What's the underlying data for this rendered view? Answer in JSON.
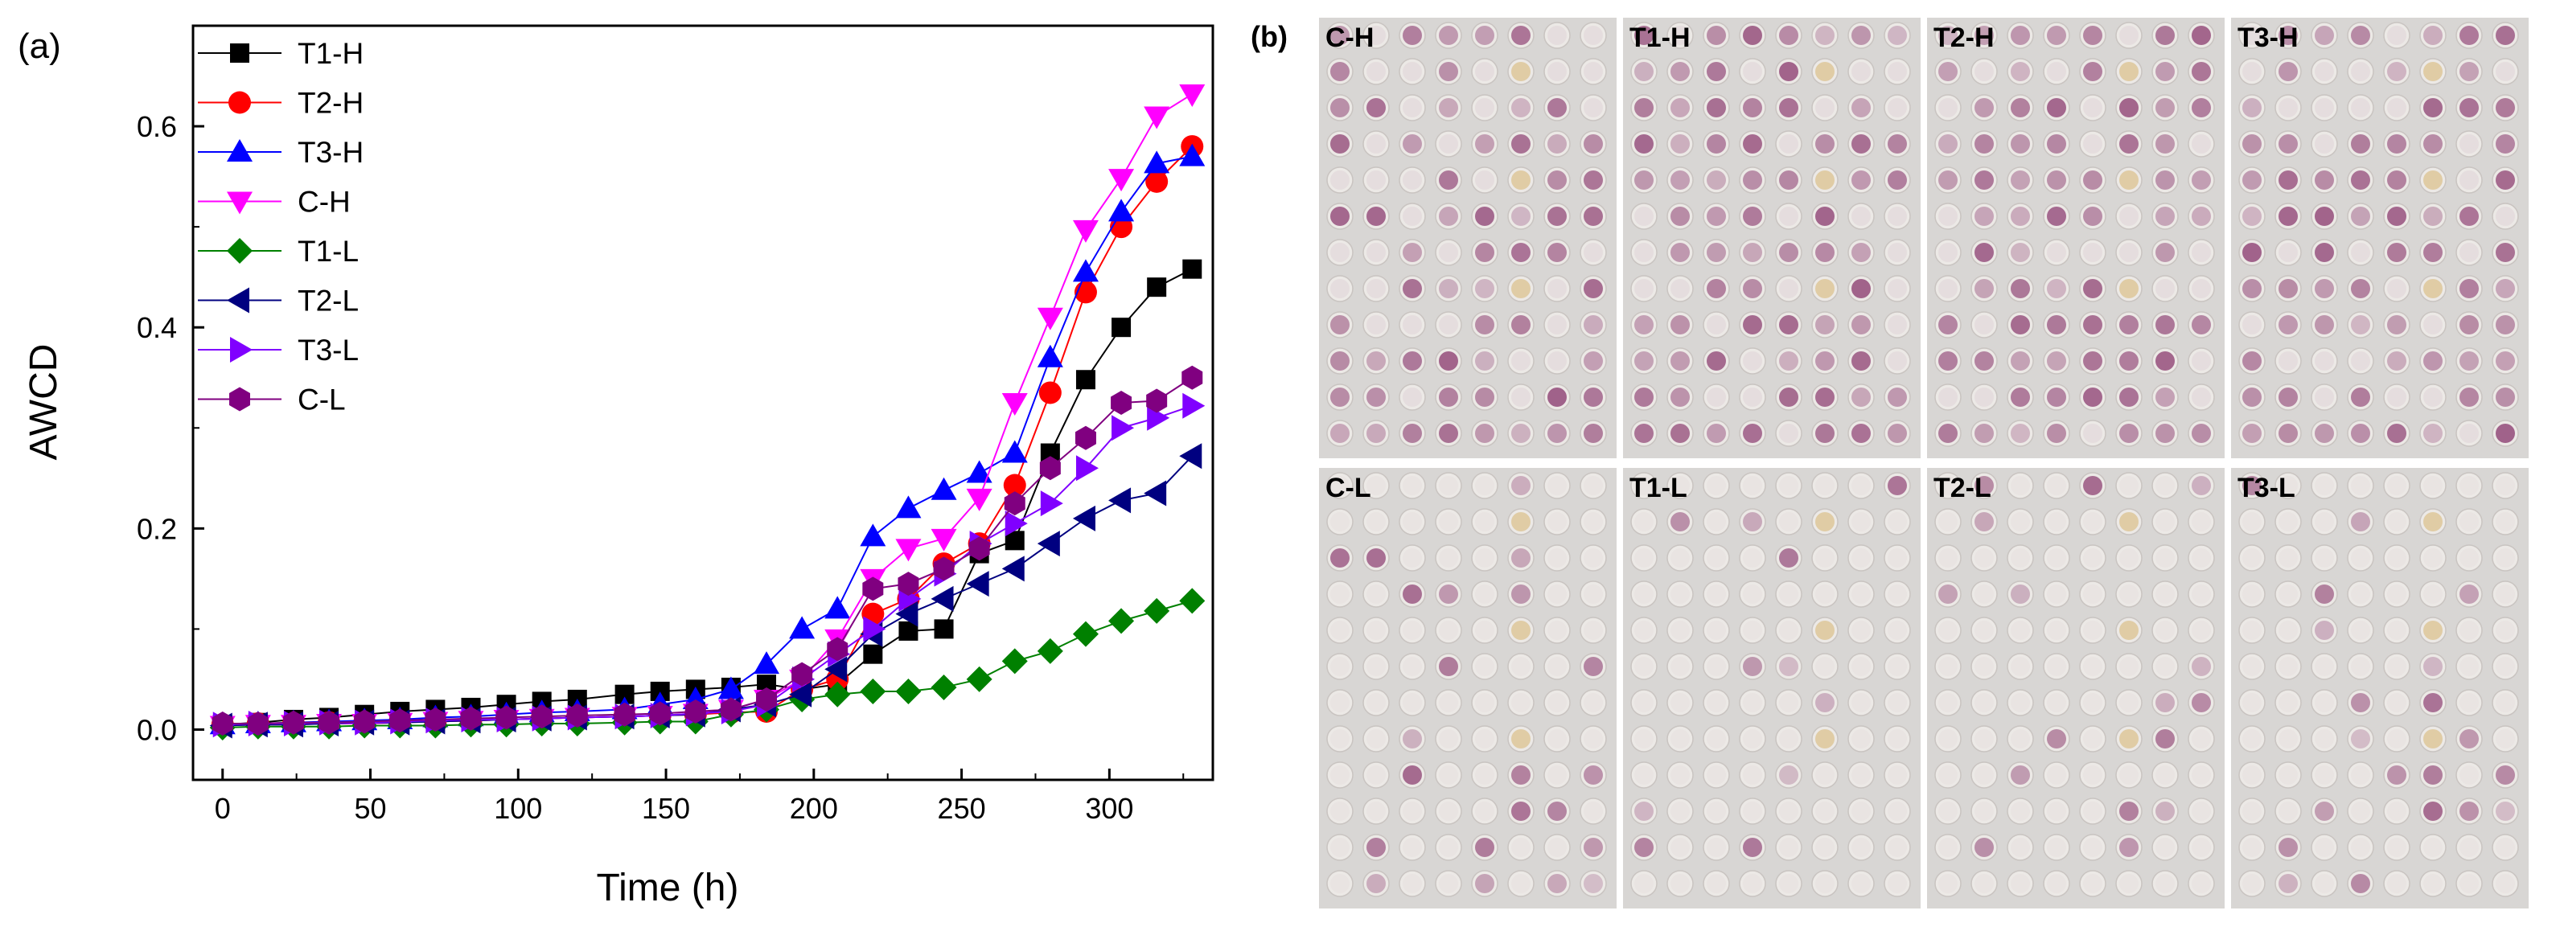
{
  "panel_a_label": "(a)",
  "panel_b_label": "(b)",
  "chart_data": {
    "type": "line",
    "title": "",
    "xlabel": "Time (h)",
    "ylabel": "AWCD",
    "xlim": [
      -10,
      335
    ],
    "ylim": [
      -0.05,
      0.7
    ],
    "xticks": [
      0,
      50,
      100,
      150,
      200,
      250,
      300
    ],
    "yticks": [
      0.0,
      0.2,
      0.4,
      0.6
    ],
    "xtick_labels": [
      "0",
      "50",
      "100",
      "150",
      "200",
      "250",
      "300"
    ],
    "ytick_labels": [
      "0.0",
      "0.2",
      "0.4",
      "0.6"
    ],
    "grid": false,
    "legend_position": "top-left",
    "x": [
      0,
      12,
      24,
      36,
      48,
      60,
      72,
      84,
      96,
      108,
      120,
      136,
      148,
      160,
      172,
      184,
      196,
      208,
      220,
      232,
      244,
      256,
      268,
      280,
      292,
      304,
      316,
      328
    ],
    "series": [
      {
        "name": "T1-H",
        "color": "#000000",
        "marker": "square",
        "values": [
          0.005,
          0.007,
          0.01,
          0.012,
          0.015,
          0.018,
          0.02,
          0.022,
          0.025,
          0.028,
          0.03,
          0.035,
          0.038,
          0.04,
          0.042,
          0.045,
          0.04,
          0.045,
          0.075,
          0.098,
          0.1,
          0.175,
          0.188,
          0.275,
          0.348,
          0.4,
          0.44,
          0.458
        ]
      },
      {
        "name": "T2-H",
        "color": "#ff0000",
        "marker": "circle",
        "values": [
          0.005,
          0.006,
          0.006,
          0.007,
          0.007,
          0.008,
          0.008,
          0.009,
          0.01,
          0.011,
          0.012,
          0.013,
          0.014,
          0.015,
          0.017,
          0.018,
          0.04,
          0.05,
          0.115,
          0.13,
          0.165,
          0.185,
          0.243,
          0.335,
          0.435,
          0.5,
          0.545,
          0.58
        ]
      },
      {
        "name": "T3-H",
        "color": "#0000ff",
        "marker": "triangle-up",
        "values": [
          0.005,
          0.006,
          0.007,
          0.008,
          0.009,
          0.01,
          0.012,
          0.013,
          0.015,
          0.017,
          0.018,
          0.02,
          0.025,
          0.03,
          0.04,
          0.065,
          0.1,
          0.12,
          0.192,
          0.22,
          0.238,
          0.255,
          0.275,
          0.37,
          0.455,
          0.515,
          0.563,
          0.57
        ]
      },
      {
        "name": "C-H",
        "color": "#ff00ff",
        "marker": "triangle-down",
        "values": [
          0.004,
          0.005,
          0.005,
          0.006,
          0.006,
          0.007,
          0.008,
          0.009,
          0.01,
          0.011,
          0.012,
          0.013,
          0.014,
          0.016,
          0.02,
          0.03,
          0.05,
          0.09,
          0.15,
          0.18,
          0.19,
          0.23,
          0.325,
          0.41,
          0.497,
          0.548,
          0.61,
          0.632
        ]
      },
      {
        "name": "T1-L",
        "color": "#008000",
        "marker": "diamond",
        "values": [
          0.002,
          0.003,
          0.003,
          0.003,
          0.004,
          0.004,
          0.004,
          0.005,
          0.005,
          0.006,
          0.006,
          0.007,
          0.008,
          0.008,
          0.015,
          0.02,
          0.03,
          0.035,
          0.038,
          0.038,
          0.042,
          0.05,
          0.068,
          0.078,
          0.095,
          0.108,
          0.118,
          0.128
        ]
      },
      {
        "name": "T2-L",
        "color": "#000080",
        "marker": "triangle-left",
        "values": [
          0.004,
          0.005,
          0.005,
          0.006,
          0.007,
          0.007,
          0.008,
          0.009,
          0.01,
          0.011,
          0.012,
          0.013,
          0.014,
          0.015,
          0.02,
          0.025,
          0.035,
          0.06,
          0.095,
          0.115,
          0.13,
          0.145,
          0.16,
          0.185,
          0.21,
          0.228,
          0.235,
          0.272
        ]
      },
      {
        "name": "T3-L",
        "color": "#8000ff",
        "marker": "triangle-right",
        "values": [
          0.005,
          0.006,
          0.006,
          0.007,
          0.007,
          0.008,
          0.009,
          0.01,
          0.01,
          0.011,
          0.012,
          0.013,
          0.014,
          0.016,
          0.018,
          0.025,
          0.05,
          0.075,
          0.1,
          0.13,
          0.155,
          0.185,
          0.205,
          0.225,
          0.26,
          0.3,
          0.31,
          0.322
        ]
      },
      {
        "name": "C-L",
        "color": "#800080",
        "marker": "hexagon",
        "values": [
          0.006,
          0.006,
          0.007,
          0.007,
          0.008,
          0.009,
          0.01,
          0.011,
          0.012,
          0.013,
          0.014,
          0.015,
          0.016,
          0.018,
          0.02,
          0.03,
          0.055,
          0.08,
          0.14,
          0.145,
          0.16,
          0.18,
          0.225,
          0.26,
          0.29,
          0.325,
          0.327,
          0.35
        ]
      }
    ]
  },
  "plates": {
    "labels": [
      "C-H",
      "T1-H",
      "T2-H",
      "T3-H",
      "C-L",
      "T1-L",
      "T2-L",
      "T3-L"
    ],
    "background": "#d8d6d4",
    "well_color": "#9c5a84"
  }
}
